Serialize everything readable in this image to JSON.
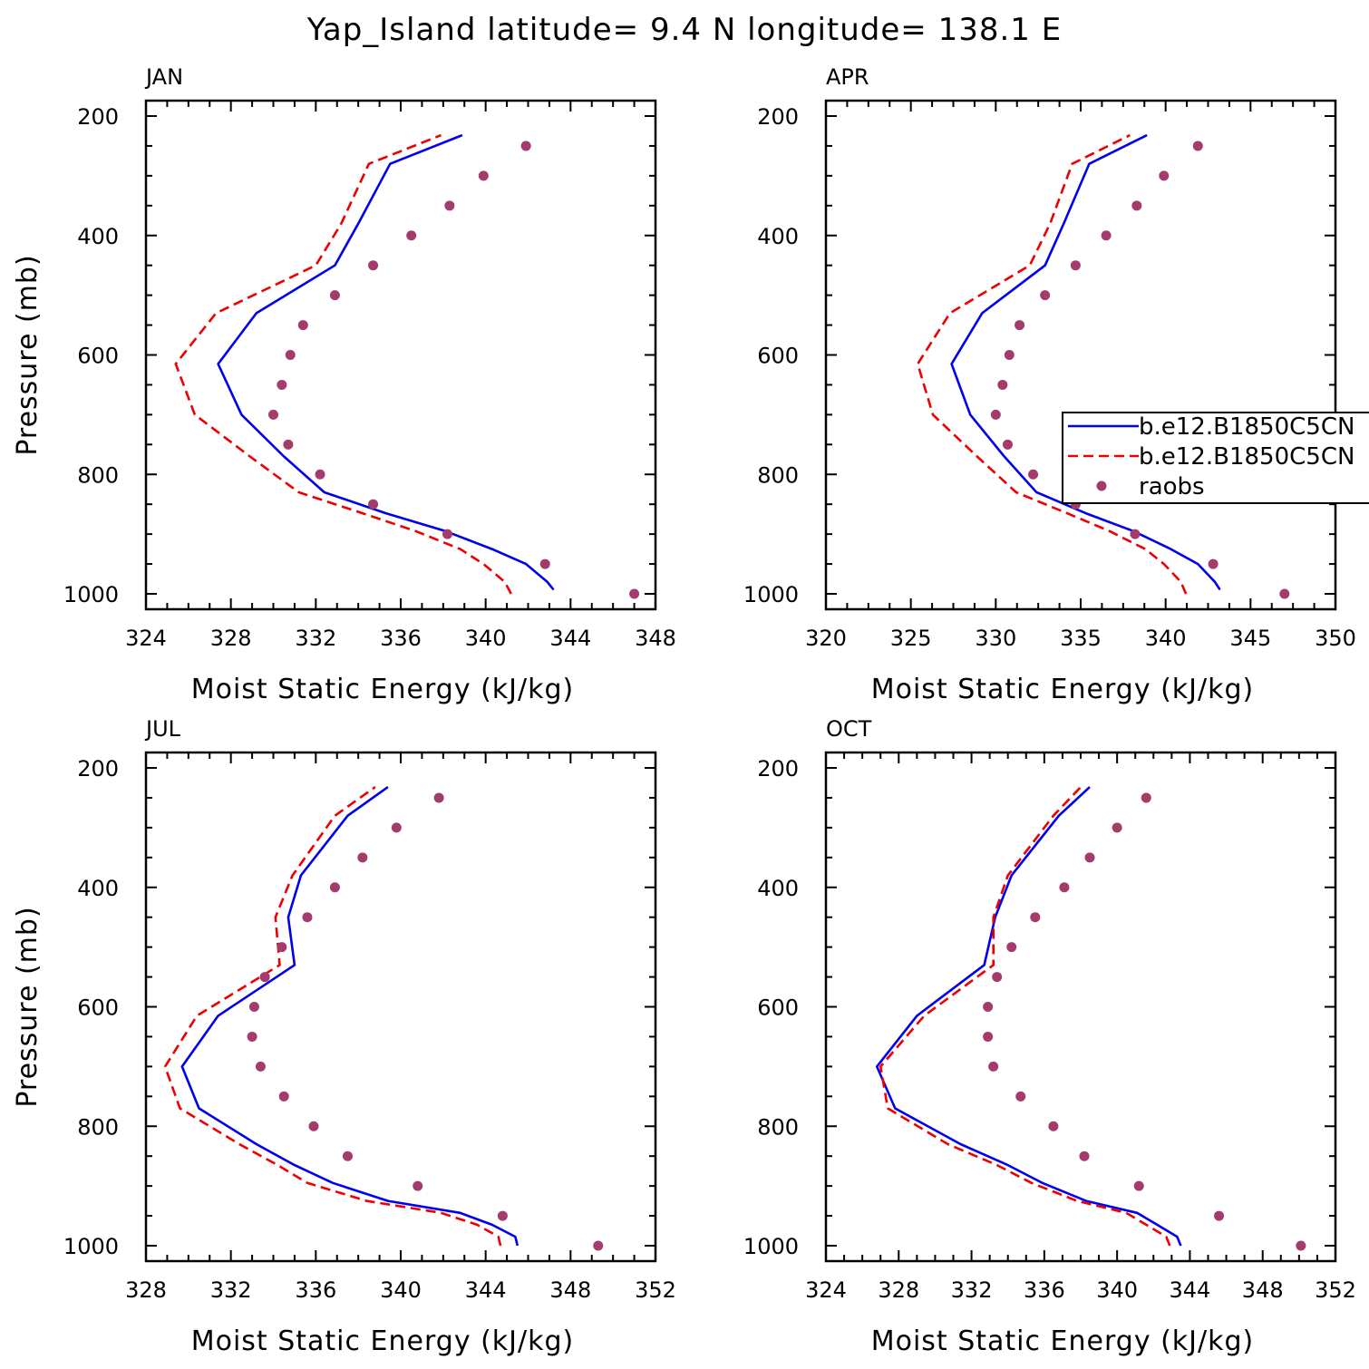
{
  "figure": {
    "title": "Yap_Island   latitude= 9.4 N longitude= 138.1 E"
  },
  "colors": {
    "model1": "#0000ee",
    "model2": "#ee0000",
    "raobs": "#a33c6c",
    "axes": "#000000"
  },
  "legend": {
    "panel": "APR",
    "entries": [
      {
        "label": "b.e12.B1850C5CN",
        "style": "solid",
        "color": "#0000ee"
      },
      {
        "label": "b.e12.B1850C5CN",
        "style": "dashed",
        "color": "#ee0000"
      },
      {
        "label": "raobs",
        "style": "dot",
        "color": "#a33c6c"
      }
    ]
  },
  "chart_data": [
    {
      "type": "line",
      "panel": "JAN",
      "xlabel": "Moist Static Energy (kJ/kg)",
      "ylabel": "Pressure (mb)",
      "xlim": [
        324,
        348
      ],
      "xticks": [
        324,
        328,
        332,
        336,
        340,
        344,
        348
      ],
      "ylim": [
        200,
        1000
      ],
      "yticks": [
        200,
        400,
        600,
        800,
        1000
      ],
      "series": [
        {
          "name": "b.e12.B1850C5CN",
          "style": "solid",
          "p": [
            993,
            980,
            950,
            925,
            895,
            865,
            830,
            770,
            700,
            615,
            530,
            450,
            380,
            280,
            232
          ],
          "x": [
            343.2,
            342.9,
            341.9,
            340.3,
            338.1,
            335.3,
            332.4,
            330.5,
            328.5,
            327.4,
            329.2,
            332.9,
            334.0,
            335.5,
            338.9
          ]
        },
        {
          "name": "b.e12.B1850C5CN",
          "style": "dashed",
          "p": [
            1000,
            980,
            950,
            925,
            895,
            865,
            830,
            770,
            700,
            615,
            530,
            450,
            380,
            280,
            232
          ],
          "x": [
            341.2,
            340.9,
            339.9,
            338.8,
            336.7,
            334.2,
            331.2,
            328.9,
            326.3,
            325.4,
            327.3,
            332.0,
            333.2,
            334.5,
            337.9
          ]
        },
        {
          "name": "raobs",
          "style": "dot",
          "p": [
            1000,
            950,
            900,
            850,
            800,
            750,
            700,
            650,
            600,
            550,
            500,
            450,
            400,
            350,
            300,
            250
          ],
          "x": [
            347.0,
            342.8,
            338.2,
            334.7,
            332.2,
            330.7,
            330.0,
            330.4,
            330.8,
            331.4,
            332.9,
            334.7,
            336.5,
            338.3,
            339.9,
            341.9
          ]
        }
      ]
    },
    {
      "type": "line",
      "panel": "APR",
      "xlabel": "Moist Static Energy (kJ/kg)",
      "ylabel": "",
      "xlim": [
        320,
        350
      ],
      "xticks": [
        320,
        325,
        330,
        335,
        340,
        345,
        350
      ],
      "ylim": [
        200,
        1000
      ],
      "yticks": [
        200,
        400,
        600,
        800,
        1000
      ],
      "series": [
        {
          "name": "b.e12.B1850C5CN",
          "style": "solid",
          "p": [
            993,
            980,
            950,
            925,
            895,
            865,
            830,
            770,
            700,
            615,
            530,
            450,
            380,
            280,
            232
          ],
          "x": [
            343.2,
            342.9,
            341.9,
            340.3,
            338.1,
            335.3,
            332.4,
            330.5,
            328.5,
            327.4,
            329.2,
            332.9,
            334.0,
            335.5,
            338.9
          ]
        },
        {
          "name": "b.e12.B1850C5CN",
          "style": "dashed",
          "p": [
            1000,
            980,
            950,
            925,
            895,
            865,
            830,
            770,
            700,
            615,
            530,
            450,
            380,
            280,
            232
          ],
          "x": [
            341.2,
            340.9,
            339.9,
            338.8,
            336.7,
            334.2,
            331.2,
            328.9,
            326.3,
            325.4,
            327.3,
            332.0,
            333.2,
            334.5,
            337.9
          ]
        },
        {
          "name": "raobs",
          "style": "dot",
          "p": [
            1000,
            950,
            900,
            850,
            800,
            750,
            700,
            650,
            600,
            550,
            500,
            450,
            400,
            350,
            300,
            250
          ],
          "x": [
            347.0,
            342.8,
            338.2,
            334.7,
            332.2,
            330.7,
            330.0,
            330.4,
            330.8,
            331.4,
            332.9,
            334.7,
            336.5,
            338.3,
            339.9,
            341.9
          ]
        }
      ]
    },
    {
      "type": "line",
      "panel": "JUL",
      "xlabel": "Moist Static Energy (kJ/kg)",
      "ylabel": "Pressure (mb)",
      "xlim": [
        328,
        352
      ],
      "xticks": [
        328,
        332,
        336,
        340,
        344,
        348,
        352
      ],
      "ylim": [
        200,
        1000
      ],
      "yticks": [
        200,
        400,
        600,
        800,
        1000
      ],
      "series": [
        {
          "name": "b.e12.B1850C5CN",
          "style": "solid",
          "p": [
            1000,
            985,
            965,
            945,
            925,
            895,
            865,
            830,
            770,
            700,
            615,
            530,
            450,
            380,
            280,
            232
          ],
          "x": [
            345.5,
            345.4,
            344.3,
            342.8,
            339.4,
            336.8,
            335.0,
            333.2,
            330.5,
            329.7,
            331.4,
            335.0,
            334.7,
            335.3,
            337.5,
            339.4
          ]
        },
        {
          "name": "b.e12.B1850C5CN",
          "style": "dashed",
          "p": [
            1000,
            985,
            965,
            945,
            925,
            895,
            865,
            830,
            770,
            700,
            615,
            530,
            450,
            380,
            280,
            232
          ],
          "x": [
            344.7,
            344.6,
            343.6,
            341.9,
            338.4,
            335.6,
            334.2,
            332.4,
            329.6,
            328.9,
            330.4,
            334.3,
            334.1,
            334.9,
            336.9,
            338.8
          ]
        },
        {
          "name": "raobs",
          "style": "dot",
          "p": [
            1000,
            950,
            900,
            850,
            800,
            750,
            700,
            650,
            600,
            550,
            500,
            450,
            400,
            350,
            300,
            250
          ],
          "x": [
            349.3,
            344.8,
            340.8,
            337.5,
            335.9,
            334.5,
            333.4,
            333.0,
            333.1,
            333.6,
            334.4,
            335.6,
            336.9,
            338.2,
            339.8,
            341.8
          ]
        }
      ]
    },
    {
      "type": "line",
      "panel": "OCT",
      "xlabel": "Moist Static Energy (kJ/kg)",
      "ylabel": "",
      "xlim": [
        324,
        352
      ],
      "xticks": [
        324,
        328,
        332,
        336,
        340,
        344,
        348,
        352
      ],
      "ylim": [
        200,
        1000
      ],
      "yticks": [
        200,
        400,
        600,
        800,
        1000
      ],
      "series": [
        {
          "name": "b.e12.B1850C5CN",
          "style": "solid",
          "p": [
            1000,
            985,
            965,
            945,
            925,
            895,
            865,
            830,
            770,
            700,
            615,
            530,
            450,
            380,
            280,
            232
          ],
          "x": [
            343.5,
            343.3,
            342.2,
            341.1,
            338.3,
            335.9,
            334.0,
            331.4,
            327.8,
            326.8,
            329.0,
            332.7,
            333.3,
            334.2,
            336.8,
            338.5
          ]
        },
        {
          "name": "b.e12.B1850C5CN",
          "style": "dashed",
          "p": [
            1000,
            985,
            965,
            945,
            925,
            895,
            865,
            830,
            770,
            700,
            615,
            530,
            450,
            380,
            280,
            232
          ],
          "x": [
            342.9,
            342.7,
            341.6,
            340.5,
            337.8,
            335.3,
            333.4,
            330.7,
            327.4,
            327.0,
            329.4,
            333.2,
            333.2,
            334.0,
            336.5,
            338.0
          ]
        },
        {
          "name": "raobs",
          "style": "dot",
          "p": [
            1000,
            950,
            900,
            850,
            800,
            750,
            700,
            650,
            600,
            550,
            500,
            450,
            400,
            350,
            300,
            250
          ],
          "x": [
            350.1,
            345.6,
            341.2,
            338.2,
            336.5,
            334.7,
            333.2,
            332.9,
            332.9,
            333.4,
            334.2,
            335.5,
            337.1,
            338.5,
            340.0,
            341.6
          ]
        }
      ]
    }
  ]
}
